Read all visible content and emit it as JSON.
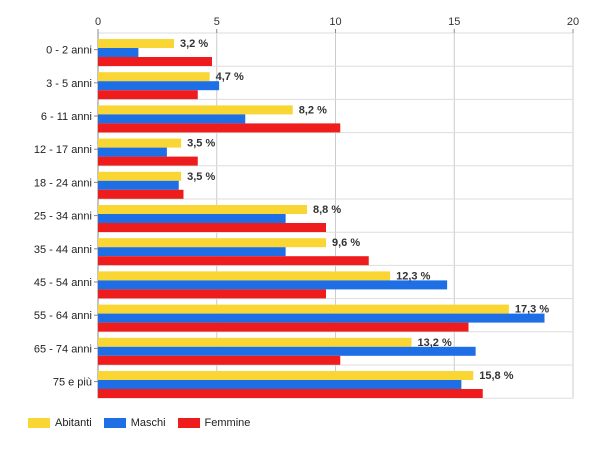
{
  "chart_data": {
    "type": "bar",
    "orientation": "horizontal",
    "categories": [
      "0 - 2 anni",
      "3 - 5 anni",
      "6 - 11 anni",
      "12 - 17 anni",
      "18 - 24 anni",
      "25 - 34 anni",
      "35 - 44 anni",
      "45 - 54 anni",
      "55 - 64 anni",
      "65 - 74 anni",
      "75 e più"
    ],
    "series": [
      {
        "name": "Abitanti",
        "color": "#f9d633",
        "values": [
          3.2,
          4.7,
          8.2,
          3.5,
          3.5,
          8.8,
          9.6,
          12.3,
          17.3,
          13.2,
          15.8
        ]
      },
      {
        "name": "Maschi",
        "color": "#1e6ee6",
        "values": [
          1.7,
          5.1,
          6.2,
          2.9,
          3.4,
          7.9,
          7.9,
          14.7,
          18.8,
          15.9,
          15.3
        ]
      },
      {
        "name": "Femmine",
        "color": "#ee1c1c",
        "values": [
          4.8,
          4.2,
          10.2,
          4.2,
          3.6,
          9.6,
          11.4,
          9.6,
          15.6,
          10.2,
          16.2
        ]
      }
    ],
    "data_labels": [
      "3,2 %",
      "4,7 %",
      "8,2 %",
      "3,5 %",
      "3,5 %",
      "8,8 %",
      "9,6 %",
      "12,3 %",
      "17,3 %",
      "13,2 %",
      "15,8 %"
    ],
    "xlim": [
      0,
      20
    ],
    "x_ticks": [
      0,
      5,
      10,
      15,
      20
    ],
    "x_tick_labels": [
      "0",
      "5",
      "10",
      "15",
      "20"
    ],
    "title": "",
    "xlabel": "",
    "ylabel": "",
    "grid": true,
    "legend_position": "bottom-left"
  }
}
